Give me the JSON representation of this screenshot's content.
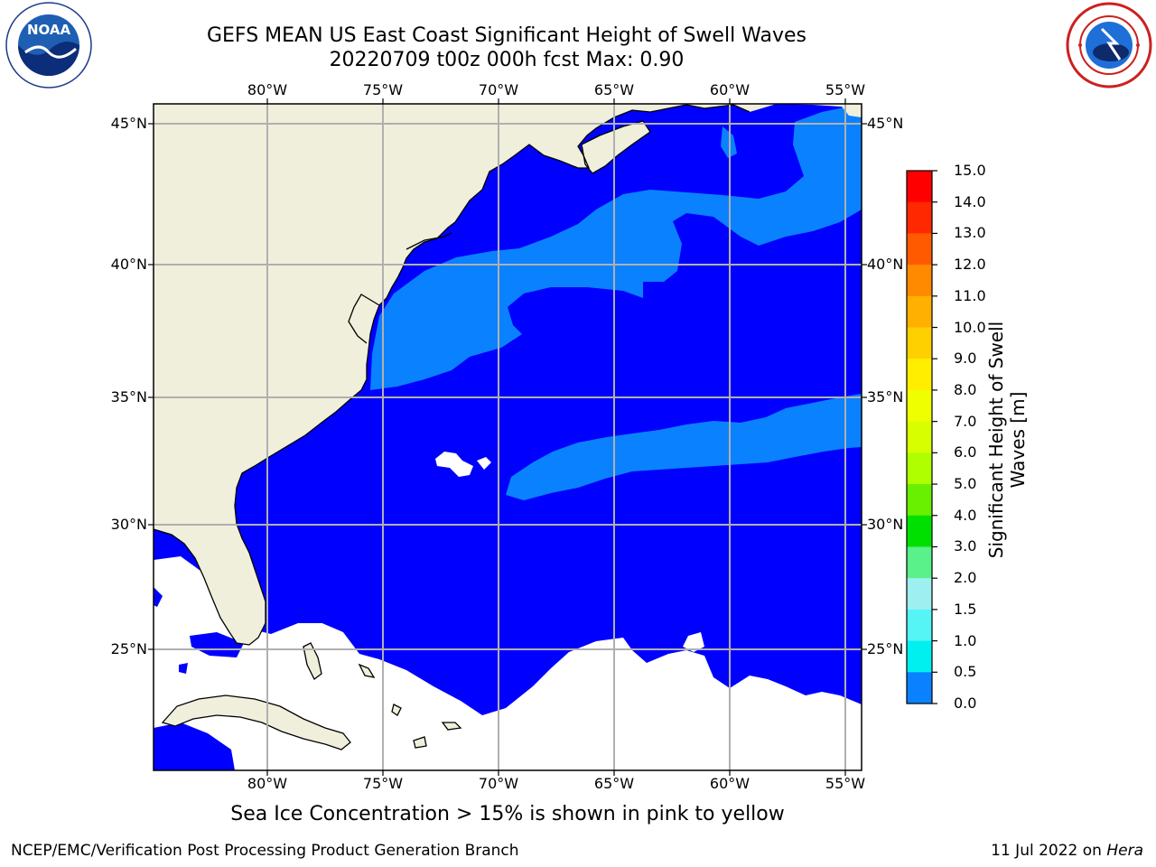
{
  "title": {
    "line1": "GEFS MEAN US East Coast Significant Height of Swell Waves",
    "line2": "20220709 t00z 000h fcst   Max: 0.90"
  },
  "logos": {
    "left": {
      "icon": "noaa-logo",
      "text": "NOAA",
      "ring_text": "NATIONAL OCEANIC AND ATMOSPHERIC ADMINISTRATION · U.S. DEPARTMENT OF COMMERCE"
    },
    "right": {
      "icon": "nws-logo",
      "ring_text": "NATIONAL WEATHER SERVICE"
    }
  },
  "map": {
    "lon_ticks": [
      "80°W",
      "75°W",
      "70°W",
      "65°W",
      "60°W",
      "55°W"
    ],
    "lat_ticks": [
      "45°N",
      "40°N",
      "35°N",
      "30°N",
      "25°N"
    ],
    "lon_values": [
      -80,
      -75,
      -70,
      -65,
      -60,
      -55
    ],
    "lat_values": [
      45,
      40,
      35,
      30,
      25
    ],
    "colors": {
      "land": "#efefdc",
      "swell_0_0p5": "#0000ff",
      "swell_0p5_1": "#0a82ff",
      "no_data": "#ffffff",
      "grid": "#b0b0b0",
      "coast": "#000000"
    }
  },
  "colorbar": {
    "title": "Significant Height of Swell Waves [m]",
    "ticks": [
      "15.0",
      "14.0",
      "13.0",
      "12.0",
      "11.0",
      "10.0",
      "9.0",
      "8.0",
      "7.0",
      "6.0",
      "5.0",
      "4.0",
      "3.0",
      "2.0",
      "1.5",
      "1.0",
      "0.5",
      "0.0"
    ],
    "colors": [
      "#ff0000",
      "#ff2800",
      "#ff5a00",
      "#ff8a00",
      "#ffb000",
      "#ffd000",
      "#ffee00",
      "#f0ff00",
      "#d8ff00",
      "#b0ff00",
      "#68f000",
      "#00e000",
      "#5af08a",
      "#9ef0f0",
      "#55f5f5",
      "#00f0f0",
      "#0a82ff",
      "#0000ff"
    ]
  },
  "caption": "Sea Ice Concentration > 15% is shown in pink to yellow",
  "footer": {
    "left": "NCEP/EMC/Verification Post Processing Product Generation Branch",
    "right_date": "11 Jul 2022 on ",
    "right_host": "Hera"
  }
}
